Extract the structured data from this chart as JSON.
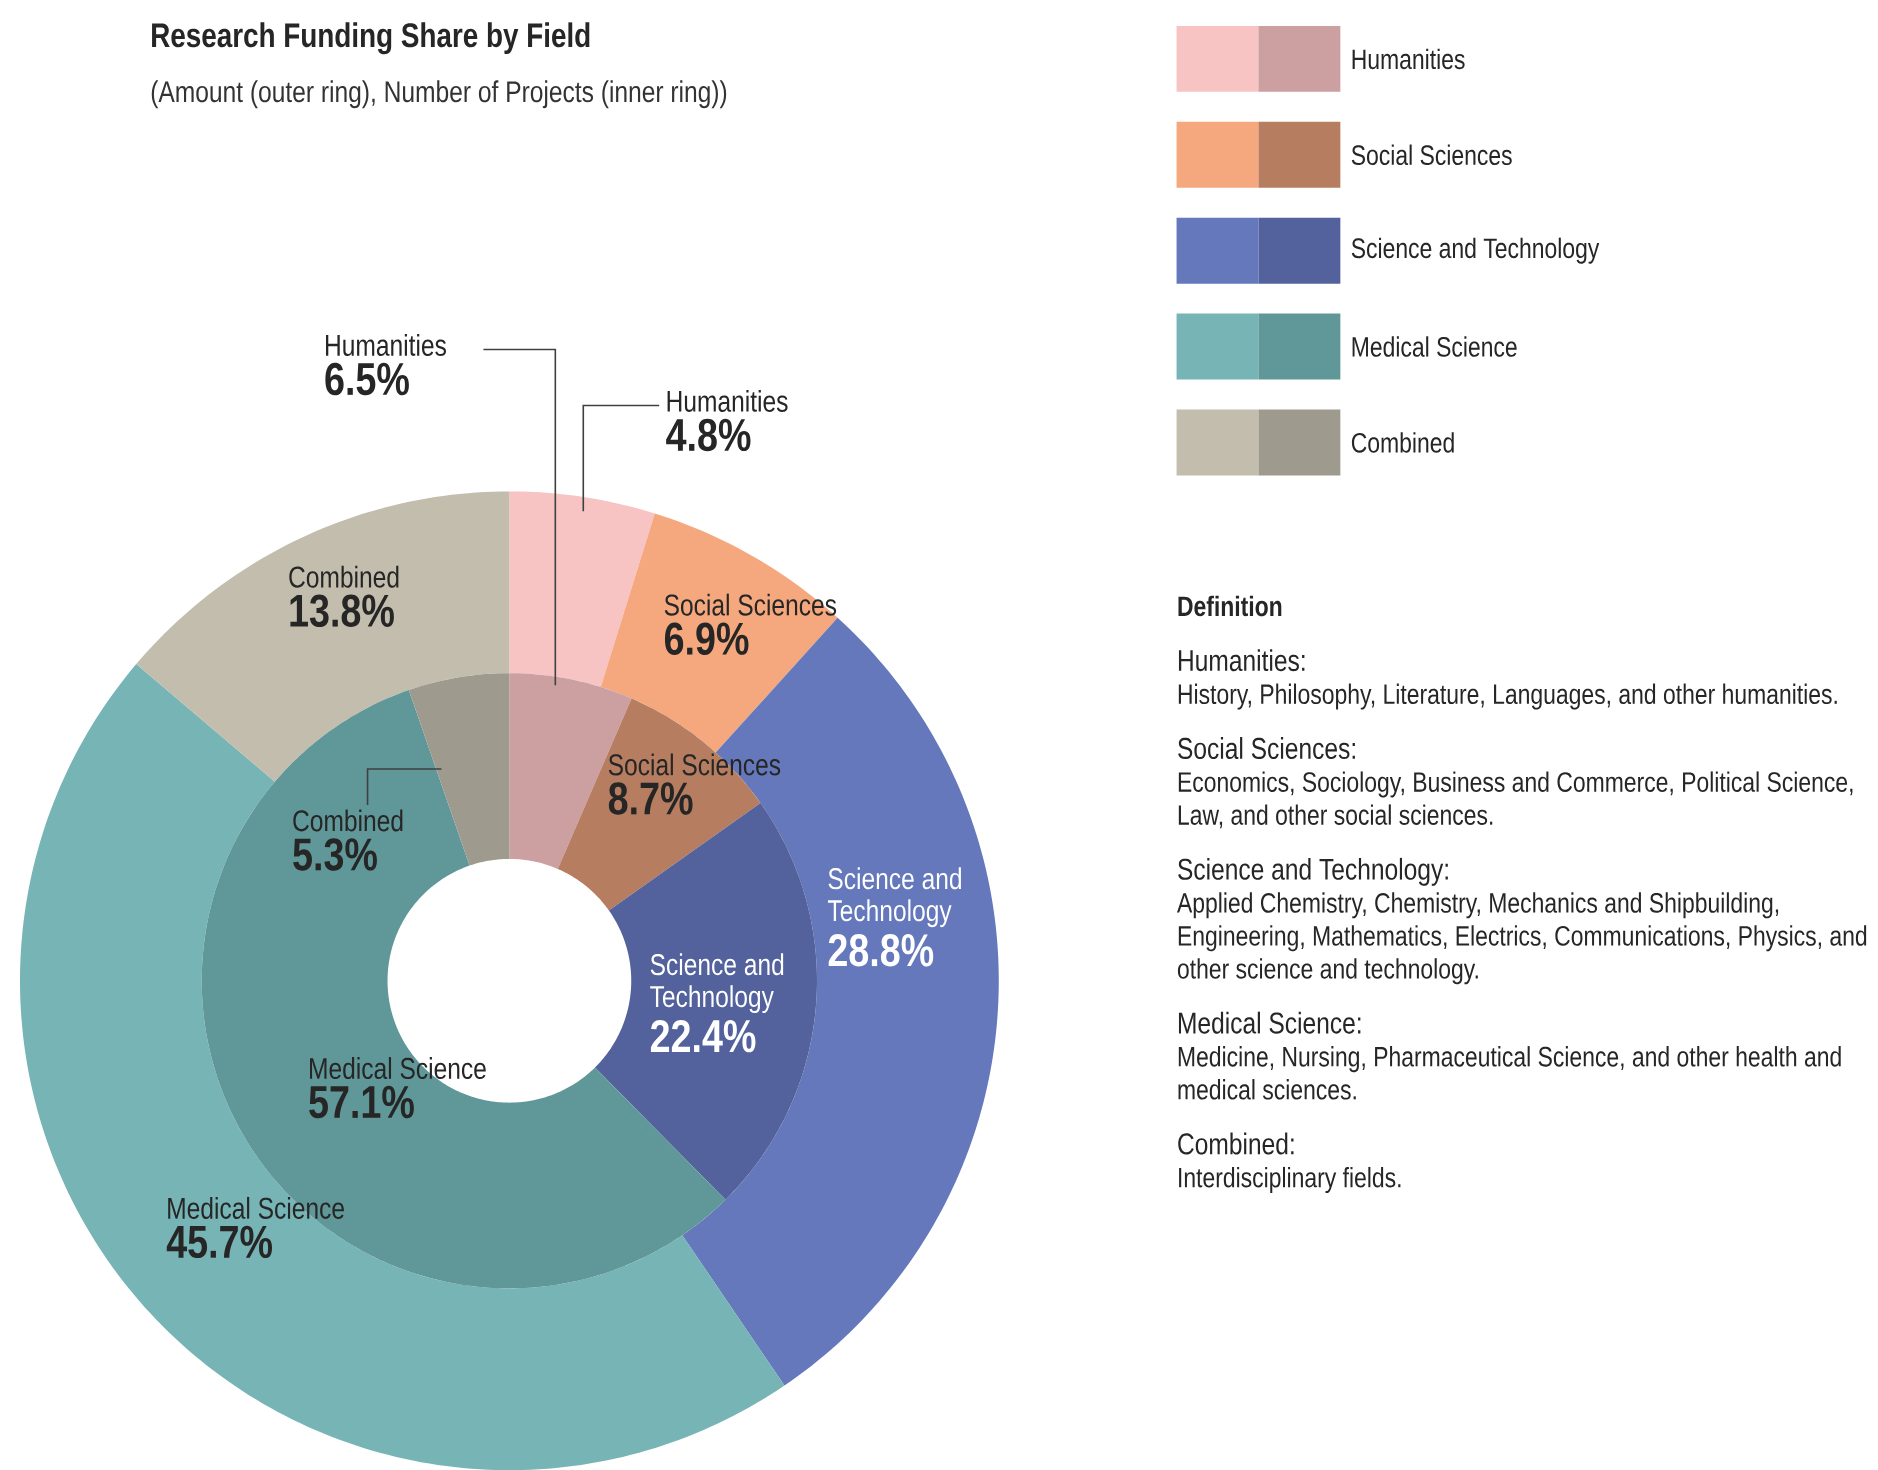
{
  "chart_data": {
    "type": "donut",
    "title": "Research Funding Share by Field",
    "subtitle": "(Amount (outer ring), Number of Projects (inner ring))",
    "categories": [
      "Humanities",
      "Social Sciences",
      "Science and Technology",
      "Medical Science",
      "Combined"
    ],
    "series": [
      {
        "values": [
          4.8,
          6.9,
          28.8,
          45.7,
          13.8
        ],
        "value_labels": [
          "4.8%",
          "6.9%",
          "28.8%",
          "45.7%",
          "13.8%"
        ],
        "colors": [
          "#f7c3c3",
          "#f5a87e",
          "#6478bb",
          "#77b4b5",
          "#c2bdad"
        ]
      },
      {
        "values": [
          6.5,
          8.7,
          22.4,
          57.1,
          5.3
        ],
        "value_labels": [
          "6.5%",
          "8.7%",
          "22.4%",
          "57.1%",
          "5.3%"
        ],
        "colors": [
          "#cc9fa0",
          "#b77d60",
          "#53629c",
          "#609798",
          "#9e9b8e"
        ]
      }
    ],
    "legend": "top right",
    "annotations": [
      "Definition",
      "Humanities:",
      "History, Philosophy, Literature, Languages, and other humanities.",
      "Social Sciences:",
      "Economics, Sociology, Business and Commerce, Political Science, Law, and other social sciences.",
      "Science and Technology:",
      "Applied Chemistry, Chemistry, Mechanics and Shipbuilding, Engineering, Mathematics, Electrics, Communications, Physics, and other science and technology.",
      "Medical Science:",
      "Medicine, Nursing, Pharmaceutical Science, and other health and medical sciences.",
      "Combined:",
      "Interdisciplinary fields."
    ]
  }
}
